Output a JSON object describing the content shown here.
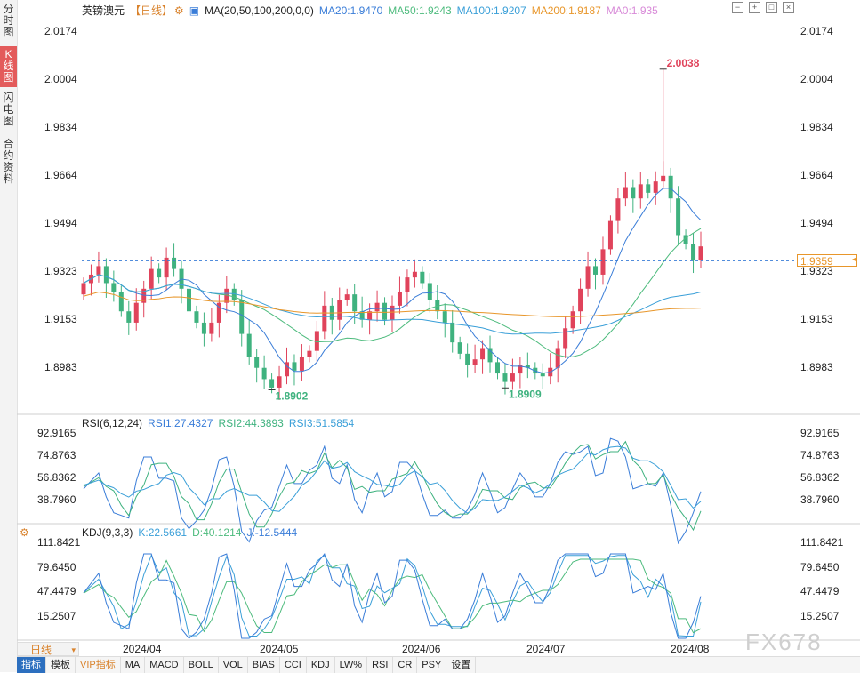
{
  "sidebar": {
    "tabs": [
      {
        "label": "分时图",
        "active": false
      },
      {
        "label": "K线图",
        "active": true
      },
      {
        "label": "闪电图",
        "active": false
      },
      {
        "label": "合约资料",
        "active": false
      }
    ]
  },
  "header": {
    "instrument": "英镑澳元",
    "period_tag": "【日线】",
    "ma_params": "MA(20,50,100,200,0,0)",
    "ma20": "MA20:1.9470",
    "ma50": "MA50:1.9243",
    "ma100": "MA100:1.9207",
    "ma200": "MA200:1.9187",
    "ma0": "MA0:1.935"
  },
  "colors": {
    "up": "#e0435b",
    "down": "#3fb27f",
    "ma20": "#3a7dd8",
    "ma50": "#4dbb7d",
    "ma100": "#3a9fd8",
    "ma200": "#e8962a",
    "rsi1": "#3a7dd8",
    "rsi2": "#3fb27f",
    "rsi3": "#3a9fd8",
    "k": "#3a9fd8",
    "d": "#4dbb7d",
    "j": "#3a7dd8"
  },
  "price_axis": {
    "ticks": [
      "2.0174",
      "2.0004",
      "1.9834",
      "1.9664",
      "1.9494",
      "1.9323",
      "1.9153",
      "1.8983"
    ]
  },
  "annotations": {
    "high": "2.0038",
    "low1": "1.8902",
    "low2": "1.8909",
    "last_price": "1.9359"
  },
  "rsi": {
    "label": "RSI(6,12,24)",
    "rsi1": "RSI1:27.4327",
    "rsi2": "RSI2:44.3893",
    "rsi3": "RSI3:51.5854",
    "ticks": [
      "92.9165",
      "74.8763",
      "56.8362",
      "38.7960"
    ]
  },
  "kdj": {
    "label": "KDJ(9,3,3)",
    "k": "K:22.5661",
    "d": "D:40.1214",
    "j": "J:-12.5444",
    "ticks": [
      "111.8421",
      "79.6450",
      "47.4479",
      "15.2507"
    ]
  },
  "x_axis": {
    "labels": [
      "2024/04",
      "2024/05",
      "2024/06",
      "2024/07",
      "2024/08"
    ]
  },
  "period_button": "日线",
  "bottom_tabs": [
    "指标",
    "模板",
    "VIP指标",
    "MA",
    "MACD",
    "BOLL",
    "VOL",
    "BIAS",
    "CCI",
    "KDJ",
    "LW%",
    "RSI",
    "CR",
    "PSY",
    "设置"
  ],
  "watermark": "FX678",
  "chart_data": {
    "type": "candlestick",
    "instrument": "英镑澳元",
    "period": "日线",
    "ylim": [
      1.885,
      2.022
    ],
    "x_labels": [
      "2024/04",
      "2024/05",
      "2024/06",
      "2024/07",
      "2024/08"
    ],
    "close_path": [
      1.928,
      1.931,
      1.934,
      1.928,
      1.925,
      1.918,
      1.914,
      1.921,
      1.926,
      1.933,
      1.93,
      1.937,
      1.933,
      1.926,
      1.918,
      1.914,
      1.91,
      1.914,
      1.921,
      1.926,
      1.922,
      1.91,
      1.902,
      1.898,
      1.894,
      1.891,
      1.895,
      1.9,
      1.897,
      1.902,
      1.904,
      1.911,
      1.92,
      1.915,
      1.922,
      1.924,
      1.918,
      1.915,
      1.918,
      1.921,
      1.915,
      1.92,
      1.925,
      1.93,
      1.932,
      1.928,
      1.922,
      1.918,
      1.914,
      1.907,
      1.903,
      1.899,
      1.901,
      1.905,
      1.9,
      1.896,
      1.893,
      1.896,
      1.899,
      1.898,
      1.896,
      1.895,
      1.898,
      1.905,
      1.912,
      1.918,
      1.926,
      1.934,
      1.931,
      1.94,
      1.95,
      1.958,
      1.962,
      1.958,
      1.963,
      1.96,
      1.964,
      1.966,
      1.958,
      1.945,
      1.942,
      1.936,
      1.941
    ],
    "high": 2.0038,
    "lows": [
      1.8902,
      1.8909
    ],
    "last": 1.9359,
    "series": [
      {
        "name": "MA20",
        "value": 1.947
      },
      {
        "name": "MA50",
        "value": 1.9243
      },
      {
        "name": "MA100",
        "value": 1.9207
      },
      {
        "name": "MA200",
        "value": 1.9187
      },
      {
        "name": "MA0",
        "value": 1.935
      }
    ],
    "rsi": {
      "RSI1": 27.4327,
      "RSI2": 44.3893,
      "RSI3": 51.5854,
      "ylim": [
        30,
        100
      ]
    },
    "kdj": {
      "K": 22.5661,
      "D": 40.1214,
      "J": -12.5444,
      "ylim": [
        0,
        125
      ]
    }
  }
}
